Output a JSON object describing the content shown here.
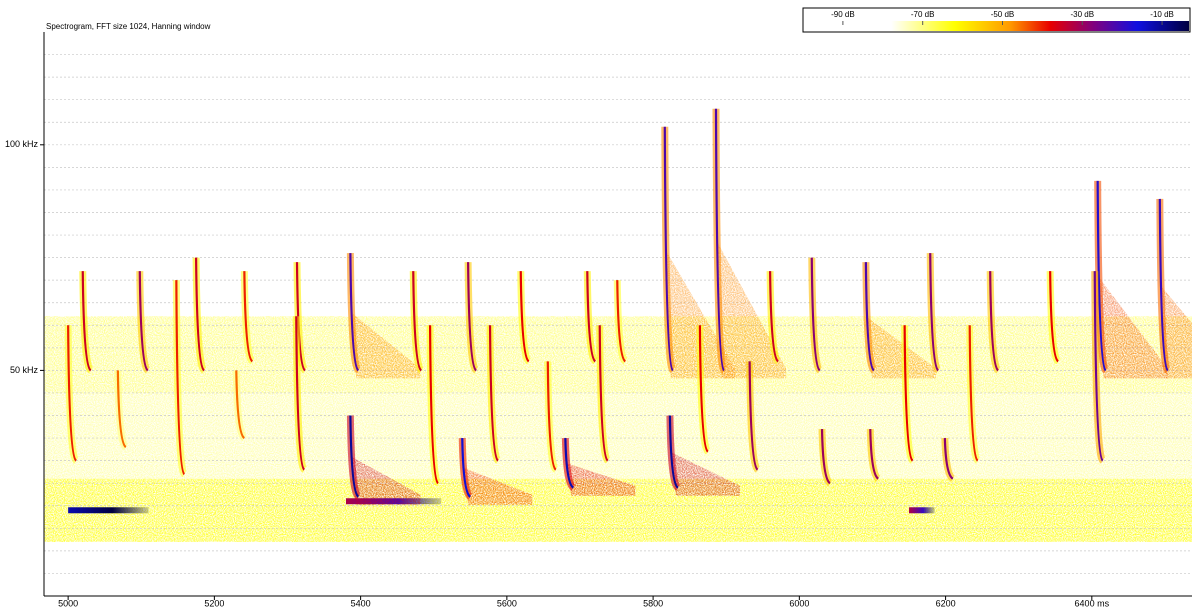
{
  "chart_data": {
    "type": "spectrogram",
    "title": "Spectrogram, FFT size 1024, Hanning window",
    "xlim": [
      4967,
      6537
    ],
    "xticks": [
      5000,
      5200,
      5400,
      5600,
      5800,
      6000,
      6200,
      {
        "value": 6400,
        "label": "6400 ms"
      }
    ],
    "ylim": [
      0,
      125
    ],
    "yticks": [
      {
        "value": 50,
        "label": "50 kHz"
      },
      {
        "value": 100,
        "label": "100 kHz"
      }
    ],
    "y_grid": [
      5,
      10,
      15,
      20,
      25,
      30,
      35,
      40,
      45,
      55,
      60,
      65,
      70,
      75,
      80,
      85,
      90,
      95,
      105,
      110,
      115,
      120
    ],
    "zlim": [
      -100,
      -3
    ],
    "zticks": [
      {
        "value": -90,
        "label": "-90 dB"
      },
      {
        "value": -70,
        "label": "-70 dB"
      },
      {
        "value": -50,
        "label": "-50 dB"
      },
      {
        "value": -30,
        "label": "-30 dB"
      },
      {
        "value": -10,
        "label": "-10 dB"
      }
    ],
    "colormap": [
      {
        "value": -100,
        "color": "#ffffff"
      },
      {
        "value": -78,
        "color": "#ffffff"
      },
      {
        "value": -62,
        "color": "#ffff00"
      },
      {
        "value": -48,
        "color": "#ff9900"
      },
      {
        "value": -38,
        "color": "#e80000"
      },
      {
        "value": -27,
        "color": "#80007f"
      },
      {
        "value": -16,
        "color": "#1010e0"
      },
      {
        "value": -3,
        "color": "#000040"
      }
    ],
    "noise": [
      {
        "f_low": 12,
        "f_high": 26,
        "db": -62
      },
      {
        "f_low": 26,
        "f_high": 45,
        "db": -72
      },
      {
        "f_low": 45,
        "f_high": 62,
        "db": -69
      },
      {
        "f_low": 62,
        "f_high": 125,
        "db": -82
      }
    ],
    "calls": [
      {
        "t": 5020,
        "f_high": 72,
        "f_low": 50,
        "db": -35
      },
      {
        "t": 5098,
        "f_high": 72,
        "f_low": 50,
        "db": -30
      },
      {
        "t": 5175,
        "f_high": 75,
        "f_low": 50,
        "db": -35
      },
      {
        "t": 5241,
        "f_high": 72,
        "f_low": 52,
        "db": -40
      },
      {
        "t": 5313,
        "f_high": 74,
        "f_low": 50,
        "db": -35
      },
      {
        "t": 5386,
        "f_high": 76,
        "f_low": 50,
        "db": -22
      },
      {
        "t": 5472,
        "f_high": 72,
        "f_low": 50,
        "db": -35
      },
      {
        "t": 5547,
        "f_high": 74,
        "f_low": 50,
        "db": -30
      },
      {
        "t": 5619,
        "f_high": 72,
        "f_low": 52,
        "db": -38
      },
      {
        "t": 5710,
        "f_high": 72,
        "f_low": 52,
        "db": -35
      },
      {
        "t": 5751,
        "f_high": 70,
        "f_low": 52,
        "db": -40
      },
      {
        "t": 5816,
        "f_high": 104,
        "f_low": 50,
        "db": -22
      },
      {
        "t": 5886,
        "f_high": 108,
        "f_low": 50,
        "db": -22
      },
      {
        "t": 5960,
        "f_high": 72,
        "f_low": 52,
        "db": -35
      },
      {
        "t": 6017,
        "f_high": 75,
        "f_low": 50,
        "db": -28
      },
      {
        "t": 6091,
        "f_high": 74,
        "f_low": 50,
        "db": -22
      },
      {
        "t": 6179,
        "f_high": 76,
        "f_low": 50,
        "db": -28
      },
      {
        "t": 6261,
        "f_high": 72,
        "f_low": 50,
        "db": -30
      },
      {
        "t": 6343,
        "f_high": 72,
        "f_low": 52,
        "db": -38
      },
      {
        "t": 6408,
        "f_high": 92,
        "f_low": 50,
        "db": -18
      },
      {
        "t": 6493,
        "f_high": 88,
        "f_low": 50,
        "db": -20
      },
      {
        "t": 5000,
        "f_high": 60,
        "f_low": 30,
        "db": -40
      },
      {
        "t": 5068,
        "f_high": 50,
        "f_low": 33,
        "db": -45
      },
      {
        "t": 5148,
        "f_high": 70,
        "f_low": 27,
        "db": -40
      },
      {
        "t": 5230,
        "f_high": 50,
        "f_low": 35,
        "db": -45
      },
      {
        "t": 5312,
        "f_high": 62,
        "f_low": 28,
        "db": -35
      },
      {
        "t": 5386,
        "f_high": 40,
        "f_low": 22,
        "db": -10
      },
      {
        "t": 5495,
        "f_high": 60,
        "f_low": 25,
        "db": -38
      },
      {
        "t": 5539,
        "f_high": 35,
        "f_low": 22,
        "db": -15
      },
      {
        "t": 5577,
        "f_high": 60,
        "f_low": 30,
        "db": -35
      },
      {
        "t": 5656,
        "f_high": 52,
        "f_low": 28,
        "db": -40
      },
      {
        "t": 5680,
        "f_high": 35,
        "f_low": 24,
        "db": -12
      },
      {
        "t": 5727,
        "f_high": 60,
        "f_low": 30,
        "db": -35
      },
      {
        "t": 5823,
        "f_high": 40,
        "f_low": 24,
        "db": -10
      },
      {
        "t": 5864,
        "f_high": 60,
        "f_low": 32,
        "db": -38
      },
      {
        "t": 5932,
        "f_high": 52,
        "f_low": 28,
        "db": -30
      },
      {
        "t": 6031,
        "f_high": 37,
        "f_low": 25,
        "db": -30
      },
      {
        "t": 6097,
        "f_high": 37,
        "f_low": 26,
        "db": -30
      },
      {
        "t": 6144,
        "f_high": 60,
        "f_low": 30,
        "db": -38
      },
      {
        "t": 6199,
        "f_high": 35,
        "f_low": 26,
        "db": -28
      },
      {
        "t": 6233,
        "f_high": 60,
        "f_low": 30,
        "db": -40
      },
      {
        "t": 6404,
        "f_high": 72,
        "f_low": 30,
        "db": -25
      }
    ],
    "segments": [
      {
        "t_start": 5000,
        "t_end": 5110,
        "f": 19,
        "db": -12
      },
      {
        "t_start": 5380,
        "t_end": 5510,
        "f": 21,
        "db": -32
      },
      {
        "t_start": 6150,
        "t_end": 6185,
        "f": 19,
        "db": -32
      }
    ]
  }
}
